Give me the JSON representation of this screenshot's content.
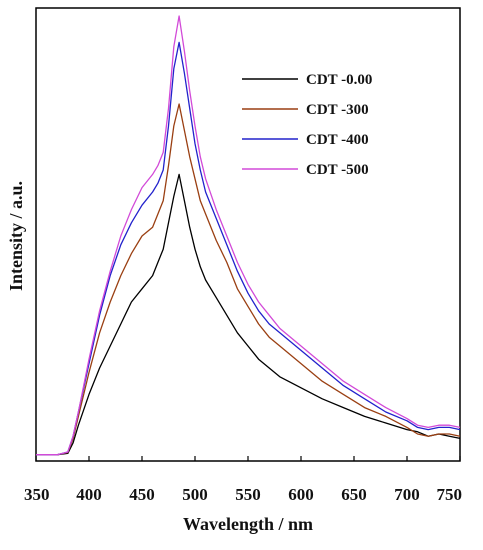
{
  "chart_data": {
    "type": "line",
    "title": "",
    "xlabel": "Wavelength / nm",
    "ylabel": "Intensity / a.u.",
    "xlim": [
      350,
      750
    ],
    "ylim": [
      0,
      1
    ],
    "xticks": [
      "350",
      "400",
      "450",
      "500",
      "550",
      "600",
      "650",
      "700",
      "750"
    ],
    "legend_position": "top-right",
    "grid": false,
    "x": [
      350,
      370,
      380,
      385,
      390,
      400,
      410,
      420,
      430,
      440,
      450,
      460,
      465,
      470,
      475,
      480,
      485,
      490,
      495,
      500,
      505,
      510,
      520,
      530,
      540,
      550,
      560,
      570,
      580,
      600,
      620,
      640,
      660,
      680,
      700,
      710,
      720,
      730,
      740,
      750
    ],
    "series": [
      {
        "name": "CDT -0.00",
        "color": "#000000",
        "values": [
          0.003,
          0.003,
          0.006,
          0.03,
          0.07,
          0.14,
          0.2,
          0.25,
          0.3,
          0.35,
          0.38,
          0.41,
          0.44,
          0.47,
          0.53,
          0.59,
          0.64,
          0.58,
          0.52,
          0.47,
          0.43,
          0.4,
          0.36,
          0.32,
          0.28,
          0.25,
          0.22,
          0.2,
          0.18,
          0.155,
          0.13,
          0.11,
          0.09,
          0.075,
          0.06,
          0.055,
          0.045,
          0.05,
          0.045,
          0.04
        ]
      },
      {
        "name": "CDT -300",
        "color": "#9a3f12",
        "values": [
          0.003,
          0.003,
          0.008,
          0.04,
          0.09,
          0.19,
          0.28,
          0.35,
          0.41,
          0.46,
          0.5,
          0.52,
          0.55,
          0.58,
          0.66,
          0.75,
          0.8,
          0.74,
          0.68,
          0.63,
          0.58,
          0.55,
          0.49,
          0.44,
          0.38,
          0.34,
          0.3,
          0.27,
          0.25,
          0.21,
          0.17,
          0.14,
          0.11,
          0.09,
          0.065,
          0.05,
          0.045,
          0.05,
          0.05,
          0.045
        ]
      },
      {
        "name": "CDT -400",
        "color": "#2222cc",
        "values": [
          0.003,
          0.003,
          0.009,
          0.045,
          0.1,
          0.21,
          0.32,
          0.41,
          0.48,
          0.53,
          0.57,
          0.6,
          0.62,
          0.65,
          0.75,
          0.88,
          0.94,
          0.87,
          0.79,
          0.71,
          0.65,
          0.6,
          0.54,
          0.48,
          0.42,
          0.37,
          0.33,
          0.3,
          0.28,
          0.24,
          0.2,
          0.16,
          0.13,
          0.1,
          0.08,
          0.065,
          0.06,
          0.065,
          0.065,
          0.06
        ]
      },
      {
        "name": "CDT -500",
        "color": "#d24ad8",
        "values": [
          0.003,
          0.003,
          0.009,
          0.045,
          0.1,
          0.22,
          0.33,
          0.42,
          0.5,
          0.56,
          0.61,
          0.64,
          0.66,
          0.69,
          0.79,
          0.93,
          1.0,
          0.92,
          0.83,
          0.75,
          0.68,
          0.63,
          0.56,
          0.5,
          0.44,
          0.39,
          0.35,
          0.32,
          0.29,
          0.25,
          0.21,
          0.17,
          0.14,
          0.11,
          0.085,
          0.07,
          0.065,
          0.07,
          0.07,
          0.065
        ]
      }
    ]
  }
}
